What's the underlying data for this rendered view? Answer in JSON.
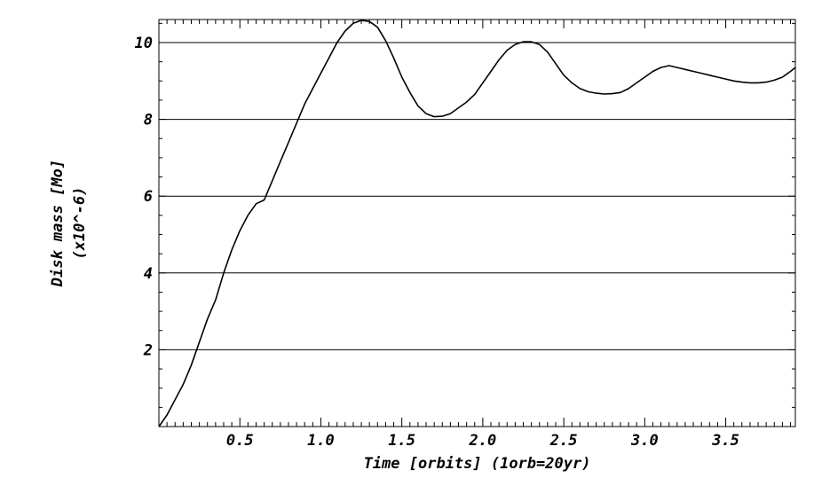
{
  "chart_data": {
    "type": "line",
    "xlabel": "Time [orbits] (1orb=20yr)",
    "ylabel_line1": "Disk mass [Mo]",
    "ylabel_line2": "(x10^-6)",
    "xlim": [
      0.0,
      3.93
    ],
    "ylim": [
      0.0,
      10.6
    ],
    "xticks": [
      0.5,
      1.0,
      1.5,
      2.0,
      2.5,
      3.0,
      3.5
    ],
    "xtick_labels": [
      "0.5",
      "1.0",
      "1.5",
      "2.0",
      "2.5",
      "3.0",
      "3.5"
    ],
    "yticks": [
      2,
      4,
      6,
      8,
      10
    ],
    "ytick_labels": [
      "2",
      "4",
      "6",
      "8",
      "10"
    ],
    "grid": "horizontal lines at y ticks",
    "series": [
      {
        "color": "#000000",
        "x": [
          0.0,
          0.05,
          0.1,
          0.15,
          0.2,
          0.25,
          0.3,
          0.35,
          0.4,
          0.45,
          0.5,
          0.55,
          0.6,
          0.65,
          0.7,
          0.75,
          0.8,
          0.85,
          0.9,
          0.95,
          1.0,
          1.05,
          1.1,
          1.15,
          1.2,
          1.25,
          1.3,
          1.35,
          1.4,
          1.45,
          1.5,
          1.55,
          1.6,
          1.65,
          1.7,
          1.75,
          1.8,
          1.85,
          1.9,
          1.95,
          2.0,
          2.05,
          2.1,
          2.15,
          2.2,
          2.25,
          2.3,
          2.35,
          2.4,
          2.45,
          2.5,
          2.55,
          2.6,
          2.65,
          2.7,
          2.75,
          2.8,
          2.85,
          2.9,
          2.95,
          3.0,
          3.05,
          3.1,
          3.15,
          3.2,
          3.25,
          3.3,
          3.35,
          3.4,
          3.45,
          3.5,
          3.55,
          3.6,
          3.65,
          3.7,
          3.75,
          3.8,
          3.85,
          3.9,
          3.93
        ],
        "y": [
          0.0,
          0.3,
          0.7,
          1.1,
          1.6,
          2.2,
          2.8,
          3.3,
          4.0,
          4.6,
          5.1,
          5.5,
          5.8,
          5.9,
          6.4,
          6.9,
          7.4,
          7.9,
          8.4,
          8.8,
          9.2,
          9.6,
          10.0,
          10.3,
          10.5,
          10.58,
          10.55,
          10.4,
          10.05,
          9.6,
          9.1,
          8.7,
          8.35,
          8.15,
          8.07,
          8.08,
          8.15,
          8.3,
          8.45,
          8.65,
          8.95,
          9.25,
          9.55,
          9.8,
          9.95,
          10.02,
          10.02,
          9.95,
          9.75,
          9.45,
          9.15,
          8.95,
          8.8,
          8.72,
          8.68,
          8.66,
          8.67,
          8.7,
          8.8,
          8.95,
          9.1,
          9.25,
          9.35,
          9.4,
          9.35,
          9.3,
          9.25,
          9.2,
          9.15,
          9.1,
          9.05,
          9.0,
          8.97,
          8.95,
          8.95,
          8.97,
          9.02,
          9.1,
          9.25,
          9.35
        ]
      }
    ]
  }
}
